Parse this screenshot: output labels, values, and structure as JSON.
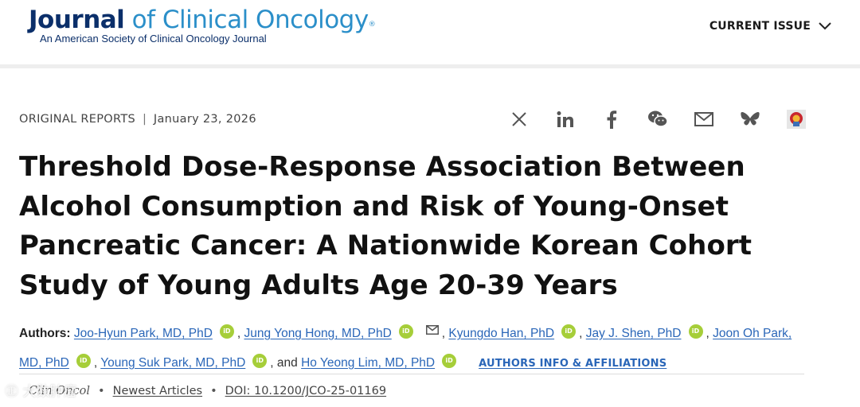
{
  "header": {
    "logo_word1": "Journal",
    "logo_word2": "of Clinical Oncology",
    "logo_mark": "®",
    "logo_subtitle": "An American Society of Clinical Oncology Journal",
    "current_issue_label": "CURRENT ISSUE"
  },
  "article_meta": {
    "type": "ORIGINAL REPORTS",
    "separator": "|",
    "date": "January 23, 2026"
  },
  "share_icons": [
    "x-icon",
    "linkedin-icon",
    "facebook-icon",
    "wechat-icon",
    "email-icon",
    "bluesky-icon",
    "mendeley-icon"
  ],
  "title": "Threshold Dose-Response Association Between Alcohol Consumption and Risk of Young-Onset Pancreatic Cancer: A Nationwide Korean Cohort Study of Young Adults Age 20-39 Years",
  "authors": {
    "label": "Authors:",
    "list": [
      "Joo-Hyun Park, MD, PhD",
      "Jung Yong Hong, MD, PhD",
      "Kyungdo Han, PhD",
      "Jay J. Shen, PhD",
      "Joon Oh Park, MD, PhD",
      "Young Suk Park, MD, PhD",
      "Ho Yeong Lim, MD, PhD"
    ],
    "comma": ",",
    "and_text": ", and",
    "orcid_text": "iD",
    "affiliations_label": "AUTHORS INFO & AFFILIATIONS"
  },
  "bottom": {
    "journal_abbrev": "Clin Oncol",
    "dot": "•",
    "newest_label": "Newest Articles",
    "doi": "DOI: 10.1200/JCO-25-01169"
  },
  "watermark": "㊣ 大数肿瘤",
  "colors": {
    "brand_dark": "#0b2f6a",
    "brand_light": "#2b8fc9",
    "link": "#2a66b8",
    "orcid": "#a6ce39"
  }
}
